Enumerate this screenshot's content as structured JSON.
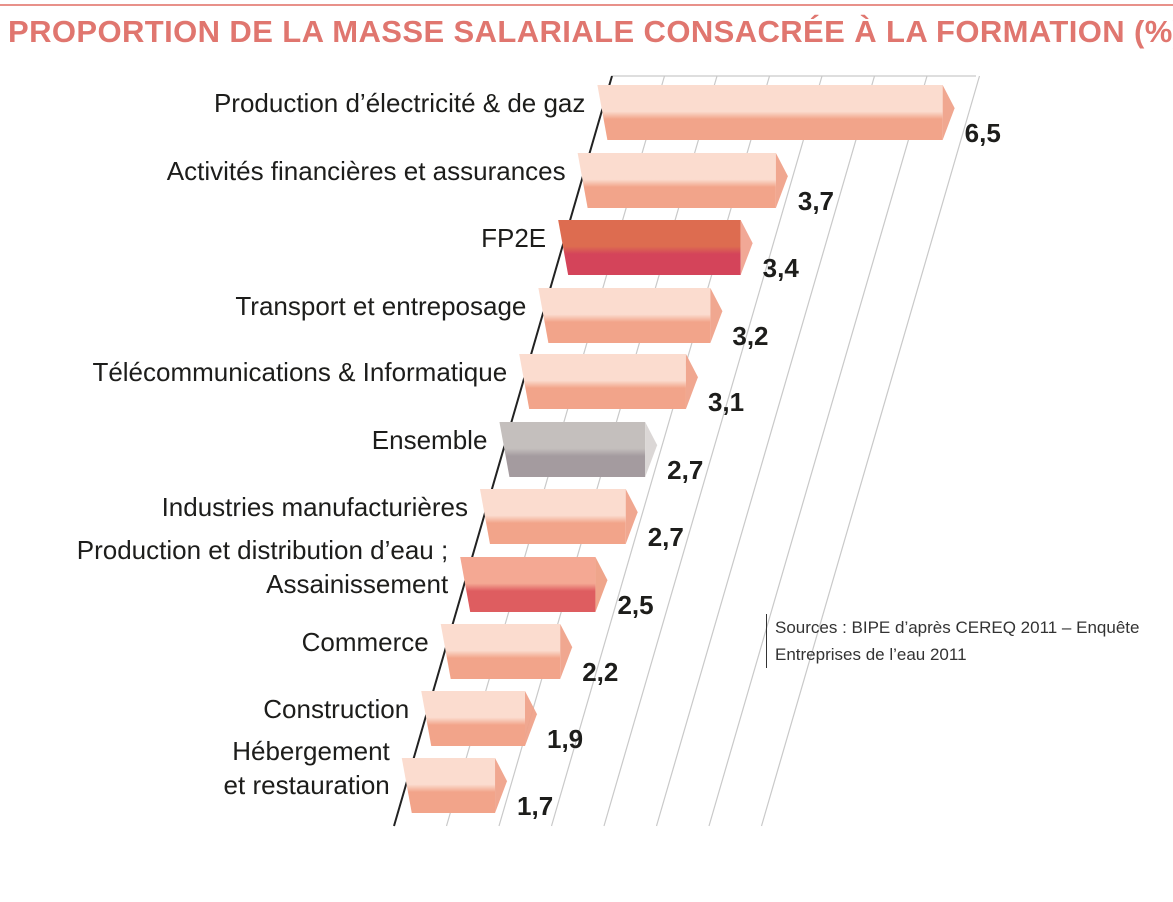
{
  "chart_data": {
    "type": "bar",
    "title": "PROPORTION DE LA MASSE SALARIALE CONSACRÉE À LA FORMATION (%)",
    "orientation": "horizontal",
    "categories": [
      [
        "Production d’électricité & de gaz"
      ],
      [
        "Activités financières et assurances"
      ],
      [
        "FP2E"
      ],
      [
        "Transport et entreposage"
      ],
      [
        "Télécommunications & Informatique"
      ],
      [
        "Ensemble"
      ],
      [
        "Industries manufacturières"
      ],
      [
        "Production et distribution d’eau ;",
        "Assainissement"
      ],
      [
        "Commerce"
      ],
      [
        "Construction"
      ],
      [
        "Hébergement",
        "et restauration"
      ]
    ],
    "values": [
      6.5,
      3.7,
      3.4,
      3.2,
      3.1,
      2.7,
      2.7,
      2.5,
      2.2,
      1.9,
      1.7
    ],
    "value_labels": [
      "6,5",
      "3,7",
      "3,4",
      "3,2",
      "3,1",
      "2,7",
      "2,7",
      "2,5",
      "2,2",
      "1,9",
      "1,7"
    ],
    "highlight": [
      "normal",
      "normal",
      "fp2e",
      "normal",
      "normal",
      "ensemble",
      "normal",
      "water",
      "normal",
      "normal",
      "normal"
    ],
    "xlim": [
      0,
      7
    ],
    "grid": true
  },
  "colors": {
    "normal": {
      "top": "#fbdccf",
      "bottom": "#f2a48a",
      "side": "#efa28a"
    },
    "fp2e": {
      "top": "#dd6c50",
      "bottom": "#d4445a",
      "side": "#f0a390"
    },
    "ensemble": {
      "top": "#c4bfbd",
      "bottom": "#a49b9f",
      "side": "#d9d5d4"
    },
    "water": {
      "top": "#f4a893",
      "bottom": "#de5d60",
      "side": "#eea085"
    },
    "title": "#e0766f",
    "grid": "#c9c9c9"
  },
  "source": {
    "line1": "Sources : BIPE d’après CEREQ 2011 – Enquête",
    "line2": "Entreprises de l’eau 2011"
  }
}
